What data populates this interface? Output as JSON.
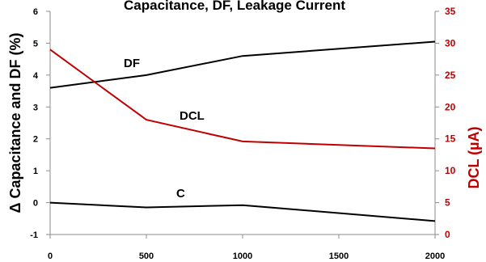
{
  "chart_data": {
    "type": "line",
    "title": "Capacitance, DF, Leakage Current",
    "ylabel": "Δ Capacitance and DF (%)",
    "y2label": "DCL (µA)",
    "xlabel": "",
    "x": [
      0,
      500,
      1000,
      1500,
      2000
    ],
    "x_ticks": [
      "0",
      "500",
      "1000",
      "1500",
      "2000"
    ],
    "xlim": [
      0,
      2000
    ],
    "ylim": [
      -1,
      6
    ],
    "y_ticks": [
      "-1",
      "0",
      "1",
      "2",
      "3",
      "4",
      "5",
      "6"
    ],
    "y2lim": [
      0,
      35
    ],
    "y2_ticks": [
      "0",
      "5",
      "10",
      "15",
      "20",
      "25",
      "30",
      "35"
    ],
    "grid": false,
    "legend": "none",
    "series": [
      {
        "name": "DF",
        "axis": "left",
        "color": "#000000",
        "x": [
          0,
          500,
          1000,
          2000
        ],
        "values": [
          3.6,
          4.0,
          4.6,
          5.05
        ]
      },
      {
        "name": "DCL",
        "axis": "right",
        "color": "#c00000",
        "x": [
          0,
          500,
          1000,
          2000
        ],
        "values": [
          29.0,
          18.0,
          14.6,
          13.5
        ]
      },
      {
        "name": "C",
        "axis": "left",
        "color": "#000000",
        "x": [
          0,
          500,
          1000,
          2000
        ],
        "values": [
          0.0,
          -0.15,
          -0.08,
          -0.58
        ]
      }
    ],
    "annotations": [
      {
        "text": "DF",
        "series": 0
      },
      {
        "text": "DCL",
        "series": 1
      },
      {
        "text": "C",
        "series": 2
      }
    ],
    "colors": {
      "primary_axis": "#000000",
      "secondary_axis": "#c00000"
    }
  }
}
